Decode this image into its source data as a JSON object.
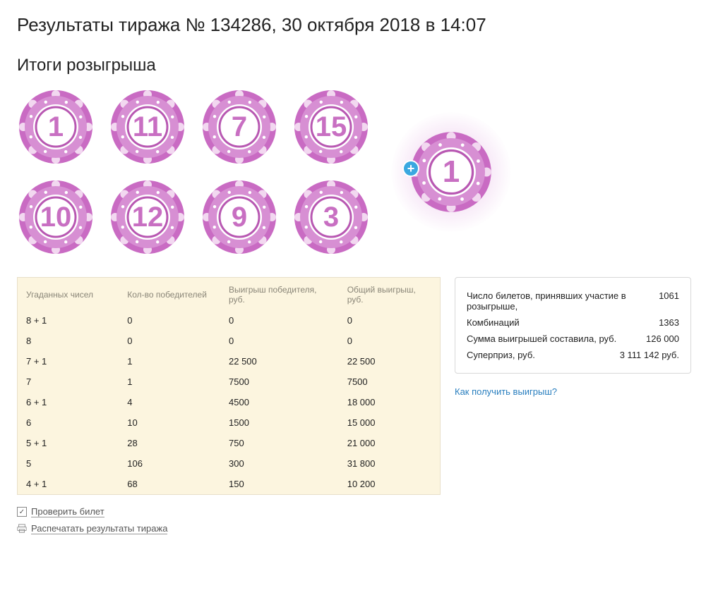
{
  "colors": {
    "chip_outer": "#c96bc3",
    "chip_mid": "#d78fd3",
    "chip_inner_ring": "#b858b2",
    "chip_face": "#ffffff",
    "chip_notch": "#f2d8f0",
    "number": "#c86fc2",
    "bonus_glow": "#d17bd0",
    "plus_badge": "#3aa8e0",
    "table_bg": "#fcf5df",
    "table_border": "#e8dfc9",
    "table_header_text": "#8a8678",
    "summary_border": "#d8d8d8",
    "link": "#2a7fbf",
    "text": "#222222"
  },
  "title": "Результаты тиража № 134286, 30 октября 2018 в 14:07",
  "subtitle": "Итоги розыгрыша",
  "chips": [
    "1",
    "11",
    "7",
    "15",
    "10",
    "12",
    "9",
    "3"
  ],
  "bonus": "1",
  "table": {
    "headers": [
      "Угаданных чисел",
      "Кол-во победителей",
      "Выигрыш победителя, руб.",
      "Общий выигрыш, руб."
    ],
    "rows": [
      [
        "8 + 1",
        "0",
        "0",
        "0"
      ],
      [
        "8",
        "0",
        "0",
        "0"
      ],
      [
        "7 + 1",
        "1",
        "22 500",
        "22 500"
      ],
      [
        "7",
        "1",
        "7500",
        "7500"
      ],
      [
        "6 + 1",
        "4",
        "4500",
        "18 000"
      ],
      [
        "6",
        "10",
        "1500",
        "15 000"
      ],
      [
        "5 + 1",
        "28",
        "750",
        "21 000"
      ],
      [
        "5",
        "106",
        "300",
        "31 800"
      ],
      [
        "4 + 1",
        "68",
        "150",
        "10 200"
      ]
    ],
    "col_widths": [
      "24%",
      "24%",
      "28%",
      "24%"
    ]
  },
  "summary": [
    {
      "label": "Число билетов, принявших участие в розыгрыше,",
      "value": "1061"
    },
    {
      "label": "Комбинаций",
      "value": "1363"
    },
    {
      "label": "Сумма выигрышей составила, руб.",
      "value": "126 000"
    },
    {
      "label": "Суперприз, руб.",
      "value": "3 111 142 руб."
    }
  ],
  "help_link": "Как получить выигрыш?",
  "actions": {
    "check": "Проверить билет",
    "print": "Распечатать результаты тиража"
  }
}
